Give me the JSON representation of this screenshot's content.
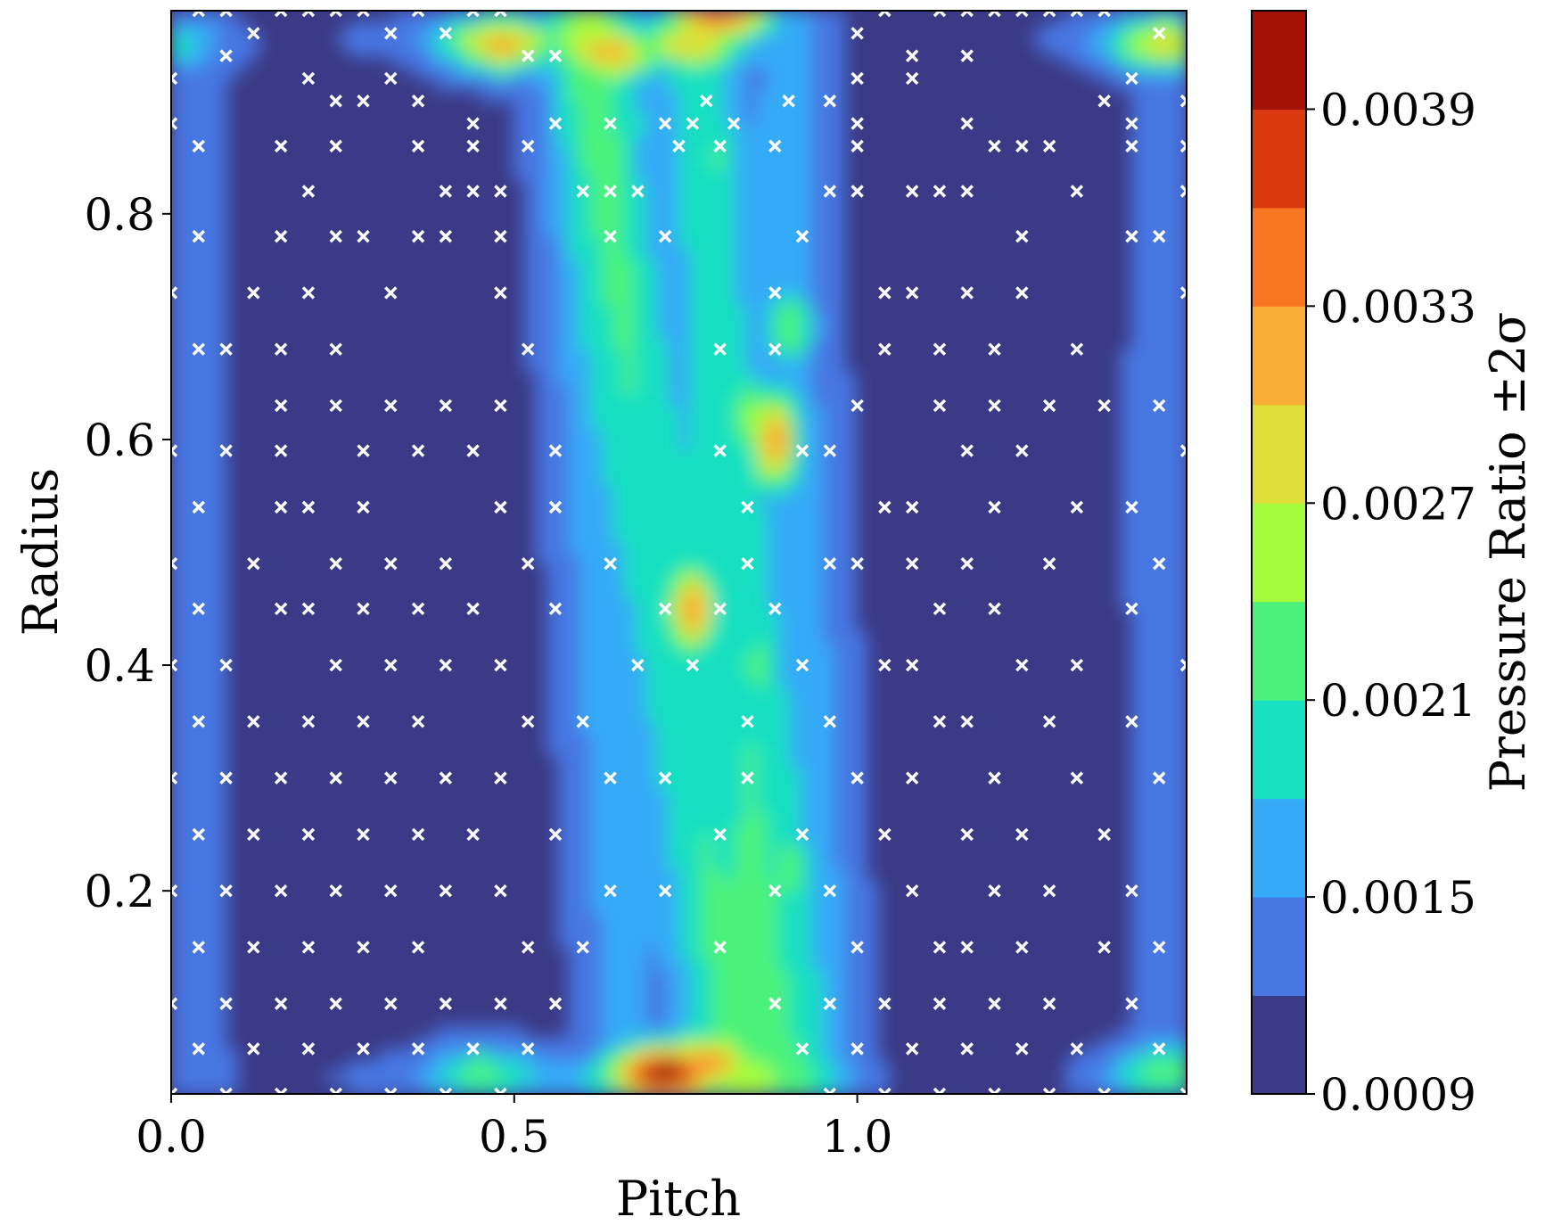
{
  "chart_data": {
    "type": "heatmap",
    "subtype": "filled-contour",
    "xlabel": "Pitch",
    "ylabel": "Radius",
    "colorbar_label": "Pressure Ratio ±2σ",
    "xlim": [
      0.0,
      1.48
    ],
    "ylim": [
      0.02,
      0.98
    ],
    "xticks": [
      0.0,
      0.5,
      1.0
    ],
    "xtick_labels": [
      "0.0",
      "0.5",
      "1.0"
    ],
    "yticks": [
      0.2,
      0.4,
      0.6,
      0.8
    ],
    "ytick_labels": [
      "0.2",
      "0.4",
      "0.6",
      "0.8"
    ],
    "levels": [
      0.0009,
      0.0012,
      0.0015,
      0.0018,
      0.0021,
      0.0024,
      0.0027,
      0.003,
      0.0033,
      0.0036,
      0.0039,
      0.0042
    ],
    "colorbar_ticks": [
      0.0009,
      0.0015,
      0.0021,
      0.0027,
      0.0033,
      0.0039
    ],
    "colorbar_tick_labels": [
      "0.0009",
      "0.0015",
      "0.0021",
      "0.0027",
      "0.0033",
      "0.0039"
    ],
    "level_colors": [
      "#3b3a86",
      "#4677e3",
      "#36aaf7",
      "#19e0c1",
      "#4bf27a",
      "#a3fc3c",
      "#dfdd37",
      "#fbae37",
      "#f97621",
      "#d9390c",
      "#a21101"
    ],
    "sample_marker": "x",
    "sample_marker_color": "#ffffff",
    "grid": false,
    "legend": "none",
    "field_description_only_for_rendering": "",
    "peaks": [
      {
        "x": 0.76,
        "y": 0.95,
        "value": 0.0028
      },
      {
        "x": 0.64,
        "y": 0.94,
        "value": 0.0029
      },
      {
        "x": 0.48,
        "y": 0.95,
        "value": 0.0028
      },
      {
        "x": 1.45,
        "y": 0.95,
        "value": 0.0026
      },
      {
        "x": 0.0,
        "y": 0.95,
        "value": 0.002
      },
      {
        "x": 0.8,
        "y": 0.98,
        "value": 0.0036
      },
      {
        "x": 0.88,
        "y": 0.6,
        "value": 0.0033
      },
      {
        "x": 0.84,
        "y": 0.62,
        "value": 0.0025
      },
      {
        "x": 0.76,
        "y": 0.45,
        "value": 0.0033
      },
      {
        "x": 0.72,
        "y": 0.04,
        "value": 0.0038
      },
      {
        "x": 0.78,
        "y": 0.05,
        "value": 0.0032
      },
      {
        "x": 1.45,
        "y": 0.04,
        "value": 0.0021
      },
      {
        "x": 0.45,
        "y": 0.04,
        "value": 0.0019
      },
      {
        "x": 0.9,
        "y": 0.22,
        "value": 0.0023
      },
      {
        "x": 0.86,
        "y": 0.4,
        "value": 0.0023
      },
      {
        "x": 0.9,
        "y": 0.7,
        "value": 0.0023
      },
      {
        "x": 0.8,
        "y": 0.85,
        "value": 0.0022
      },
      {
        "x": 0.66,
        "y": 0.88,
        "value": 0.0021
      }
    ],
    "ridges": [
      {
        "x1": 0.62,
        "y1": 0.96,
        "x2": 0.8,
        "y2": 0.05,
        "value": 0.002
      },
      {
        "x1": 0.76,
        "y1": 0.96,
        "x2": 0.88,
        "y2": 0.05,
        "value": 0.002
      },
      {
        "x1": 0.58,
        "y1": 0.9,
        "x2": 0.66,
        "y2": 0.05,
        "value": 0.0016
      },
      {
        "x1": 0.9,
        "y1": 0.8,
        "x2": 0.95,
        "y2": 0.1,
        "value": 0.0016
      }
    ],
    "sample_points": [
      [
        0.04,
        0.98
      ],
      [
        0.08,
        0.98
      ],
      [
        0.16,
        0.98
      ],
      [
        0.2,
        0.98
      ],
      [
        0.24,
        0.98
      ],
      [
        0.28,
        0.98
      ],
      [
        0.36,
        0.98
      ],
      [
        0.44,
        0.98
      ],
      [
        0.48,
        0.98
      ],
      [
        1.04,
        0.98
      ],
      [
        1.12,
        0.98
      ],
      [
        1.16,
        0.98
      ],
      [
        1.2,
        0.98
      ],
      [
        1.24,
        0.98
      ],
      [
        1.28,
        0.98
      ],
      [
        1.32,
        0.98
      ],
      [
        1.36,
        0.98
      ],
      [
        0.12,
        0.96
      ],
      [
        0.32,
        0.96
      ],
      [
        0.4,
        0.96
      ],
      [
        1.0,
        0.96
      ],
      [
        1.44,
        0.96
      ],
      [
        0.08,
        0.94
      ],
      [
        0.52,
        0.94
      ],
      [
        0.56,
        0.94
      ],
      [
        1.08,
        0.94
      ],
      [
        1.16,
        0.94
      ],
      [
        0.0,
        0.92
      ],
      [
        0.2,
        0.92
      ],
      [
        0.32,
        0.92
      ],
      [
        1.0,
        0.92
      ],
      [
        1.08,
        0.92
      ],
      [
        1.4,
        0.92
      ],
      [
        0.24,
        0.9
      ],
      [
        0.28,
        0.9
      ],
      [
        0.36,
        0.9
      ],
      [
        0.78,
        0.9
      ],
      [
        0.9,
        0.9
      ],
      [
        0.96,
        0.9
      ],
      [
        1.36,
        0.9
      ],
      [
        1.48,
        0.9
      ],
      [
        0.0,
        0.88
      ],
      [
        0.44,
        0.88
      ],
      [
        0.56,
        0.88
      ],
      [
        0.64,
        0.88
      ],
      [
        0.72,
        0.88
      ],
      [
        0.76,
        0.88
      ],
      [
        0.82,
        0.88
      ],
      [
        1.0,
        0.88
      ],
      [
        1.16,
        0.88
      ],
      [
        1.4,
        0.88
      ],
      [
        0.04,
        0.86
      ],
      [
        0.16,
        0.86
      ],
      [
        0.24,
        0.86
      ],
      [
        0.36,
        0.86
      ],
      [
        0.44,
        0.86
      ],
      [
        0.52,
        0.86
      ],
      [
        0.74,
        0.86
      ],
      [
        0.8,
        0.86
      ],
      [
        0.88,
        0.86
      ],
      [
        1.0,
        0.86
      ],
      [
        1.2,
        0.86
      ],
      [
        1.24,
        0.86
      ],
      [
        1.28,
        0.86
      ],
      [
        1.4,
        0.86
      ],
      [
        1.48,
        0.86
      ],
      [
        0.2,
        0.82
      ],
      [
        0.4,
        0.82
      ],
      [
        0.44,
        0.82
      ],
      [
        0.48,
        0.82
      ],
      [
        0.6,
        0.82
      ],
      [
        0.64,
        0.82
      ],
      [
        0.68,
        0.82
      ],
      [
        0.96,
        0.82
      ],
      [
        1.0,
        0.82
      ],
      [
        1.08,
        0.82
      ],
      [
        1.12,
        0.82
      ],
      [
        1.16,
        0.82
      ],
      [
        1.32,
        0.82
      ],
      [
        1.48,
        0.82
      ],
      [
        0.04,
        0.78
      ],
      [
        0.16,
        0.78
      ],
      [
        0.24,
        0.78
      ],
      [
        0.28,
        0.78
      ],
      [
        0.36,
        0.78
      ],
      [
        0.4,
        0.78
      ],
      [
        0.48,
        0.78
      ],
      [
        0.64,
        0.78
      ],
      [
        0.72,
        0.78
      ],
      [
        0.92,
        0.78
      ],
      [
        1.24,
        0.78
      ],
      [
        1.4,
        0.78
      ],
      [
        1.44,
        0.78
      ],
      [
        0.0,
        0.73
      ],
      [
        0.12,
        0.73
      ],
      [
        0.2,
        0.73
      ],
      [
        0.32,
        0.73
      ],
      [
        0.48,
        0.73
      ],
      [
        0.88,
        0.73
      ],
      [
        1.04,
        0.73
      ],
      [
        1.08,
        0.73
      ],
      [
        1.16,
        0.73
      ],
      [
        1.24,
        0.73
      ],
      [
        1.48,
        0.73
      ],
      [
        0.04,
        0.68
      ],
      [
        0.08,
        0.68
      ],
      [
        0.16,
        0.68
      ],
      [
        0.24,
        0.68
      ],
      [
        0.52,
        0.68
      ],
      [
        0.8,
        0.68
      ],
      [
        0.88,
        0.68
      ],
      [
        1.04,
        0.68
      ],
      [
        1.12,
        0.68
      ],
      [
        1.2,
        0.68
      ],
      [
        1.32,
        0.68
      ],
      [
        0.16,
        0.63
      ],
      [
        0.24,
        0.63
      ],
      [
        0.32,
        0.63
      ],
      [
        0.4,
        0.63
      ],
      [
        0.48,
        0.63
      ],
      [
        1.0,
        0.63
      ],
      [
        1.12,
        0.63
      ],
      [
        1.2,
        0.63
      ],
      [
        1.28,
        0.63
      ],
      [
        1.36,
        0.63
      ],
      [
        1.44,
        0.63
      ],
      [
        0.0,
        0.59
      ],
      [
        0.08,
        0.59
      ],
      [
        0.16,
        0.59
      ],
      [
        0.28,
        0.59
      ],
      [
        0.36,
        0.59
      ],
      [
        0.44,
        0.59
      ],
      [
        0.56,
        0.59
      ],
      [
        0.8,
        0.59
      ],
      [
        0.92,
        0.59
      ],
      [
        0.96,
        0.59
      ],
      [
        1.16,
        0.59
      ],
      [
        1.24,
        0.59
      ],
      [
        1.48,
        0.59
      ],
      [
        0.04,
        0.54
      ],
      [
        0.16,
        0.54
      ],
      [
        0.2,
        0.54
      ],
      [
        0.28,
        0.54
      ],
      [
        0.48,
        0.54
      ],
      [
        0.56,
        0.54
      ],
      [
        0.84,
        0.54
      ],
      [
        1.04,
        0.54
      ],
      [
        1.08,
        0.54
      ],
      [
        1.2,
        0.54
      ],
      [
        1.32,
        0.54
      ],
      [
        1.4,
        0.54
      ],
      [
        0.0,
        0.49
      ],
      [
        0.12,
        0.49
      ],
      [
        0.24,
        0.49
      ],
      [
        0.32,
        0.49
      ],
      [
        0.4,
        0.49
      ],
      [
        0.52,
        0.49
      ],
      [
        0.64,
        0.49
      ],
      [
        0.84,
        0.49
      ],
      [
        0.96,
        0.49
      ],
      [
        1.0,
        0.49
      ],
      [
        1.08,
        0.49
      ],
      [
        1.16,
        0.49
      ],
      [
        1.28,
        0.49
      ],
      [
        1.44,
        0.49
      ],
      [
        0.04,
        0.45
      ],
      [
        0.16,
        0.45
      ],
      [
        0.2,
        0.45
      ],
      [
        0.28,
        0.45
      ],
      [
        0.36,
        0.45
      ],
      [
        0.44,
        0.45
      ],
      [
        0.56,
        0.45
      ],
      [
        0.72,
        0.45
      ],
      [
        0.8,
        0.45
      ],
      [
        0.88,
        0.45
      ],
      [
        1.12,
        0.45
      ],
      [
        1.2,
        0.45
      ],
      [
        1.4,
        0.45
      ],
      [
        0.0,
        0.4
      ],
      [
        0.08,
        0.4
      ],
      [
        0.24,
        0.4
      ],
      [
        0.32,
        0.4
      ],
      [
        0.4,
        0.4
      ],
      [
        0.48,
        0.4
      ],
      [
        0.68,
        0.4
      ],
      [
        0.76,
        0.4
      ],
      [
        0.92,
        0.4
      ],
      [
        1.04,
        0.4
      ],
      [
        1.08,
        0.4
      ],
      [
        1.24,
        0.4
      ],
      [
        1.32,
        0.4
      ],
      [
        1.48,
        0.4
      ],
      [
        0.04,
        0.35
      ],
      [
        0.12,
        0.35
      ],
      [
        0.2,
        0.35
      ],
      [
        0.28,
        0.35
      ],
      [
        0.36,
        0.35
      ],
      [
        0.52,
        0.35
      ],
      [
        0.6,
        0.35
      ],
      [
        0.84,
        0.35
      ],
      [
        0.96,
        0.35
      ],
      [
        1.12,
        0.35
      ],
      [
        1.16,
        0.35
      ],
      [
        1.28,
        0.35
      ],
      [
        1.4,
        0.35
      ],
      [
        0.0,
        0.3
      ],
      [
        0.08,
        0.3
      ],
      [
        0.16,
        0.3
      ],
      [
        0.24,
        0.3
      ],
      [
        0.32,
        0.3
      ],
      [
        0.4,
        0.3
      ],
      [
        0.48,
        0.3
      ],
      [
        0.64,
        0.3
      ],
      [
        0.72,
        0.3
      ],
      [
        0.84,
        0.3
      ],
      [
        1.0,
        0.3
      ],
      [
        1.08,
        0.3
      ],
      [
        1.2,
        0.3
      ],
      [
        1.32,
        0.3
      ],
      [
        1.44,
        0.3
      ],
      [
        0.04,
        0.25
      ],
      [
        0.12,
        0.25
      ],
      [
        0.2,
        0.25
      ],
      [
        0.28,
        0.25
      ],
      [
        0.36,
        0.25
      ],
      [
        0.44,
        0.25
      ],
      [
        0.56,
        0.25
      ],
      [
        0.8,
        0.25
      ],
      [
        0.92,
        0.25
      ],
      [
        1.04,
        0.25
      ],
      [
        1.16,
        0.25
      ],
      [
        1.24,
        0.25
      ],
      [
        1.36,
        0.25
      ],
      [
        0.0,
        0.2
      ],
      [
        0.08,
        0.2
      ],
      [
        0.16,
        0.2
      ],
      [
        0.24,
        0.2
      ],
      [
        0.32,
        0.2
      ],
      [
        0.4,
        0.2
      ],
      [
        0.48,
        0.2
      ],
      [
        0.64,
        0.2
      ],
      [
        0.72,
        0.2
      ],
      [
        0.88,
        0.2
      ],
      [
        0.96,
        0.2
      ],
      [
        1.08,
        0.2
      ],
      [
        1.2,
        0.2
      ],
      [
        1.28,
        0.2
      ],
      [
        1.4,
        0.2
      ],
      [
        0.04,
        0.15
      ],
      [
        0.12,
        0.15
      ],
      [
        0.2,
        0.15
      ],
      [
        0.28,
        0.15
      ],
      [
        0.36,
        0.15
      ],
      [
        0.52,
        0.15
      ],
      [
        0.6,
        0.15
      ],
      [
        0.8,
        0.15
      ],
      [
        1.0,
        0.15
      ],
      [
        1.12,
        0.15
      ],
      [
        1.16,
        0.15
      ],
      [
        1.24,
        0.15
      ],
      [
        1.36,
        0.15
      ],
      [
        1.44,
        0.15
      ],
      [
        0.0,
        0.1
      ],
      [
        0.08,
        0.1
      ],
      [
        0.16,
        0.1
      ],
      [
        0.24,
        0.1
      ],
      [
        0.32,
        0.1
      ],
      [
        0.4,
        0.1
      ],
      [
        0.48,
        0.1
      ],
      [
        0.56,
        0.1
      ],
      [
        0.88,
        0.1
      ],
      [
        0.96,
        0.1
      ],
      [
        1.04,
        0.1
      ],
      [
        1.12,
        0.1
      ],
      [
        1.2,
        0.1
      ],
      [
        1.28,
        0.1
      ],
      [
        1.4,
        0.1
      ],
      [
        0.04,
        0.06
      ],
      [
        0.12,
        0.06
      ],
      [
        0.2,
        0.06
      ],
      [
        0.28,
        0.06
      ],
      [
        0.36,
        0.06
      ],
      [
        0.44,
        0.06
      ],
      [
        0.52,
        0.06
      ],
      [
        0.92,
        0.06
      ],
      [
        1.0,
        0.06
      ],
      [
        1.08,
        0.06
      ],
      [
        1.16,
        0.06
      ],
      [
        1.24,
        0.06
      ],
      [
        1.32,
        0.06
      ],
      [
        1.44,
        0.06
      ],
      [
        0.0,
        0.02
      ],
      [
        0.08,
        0.02
      ],
      [
        0.16,
        0.02
      ],
      [
        0.24,
        0.02
      ],
      [
        0.32,
        0.02
      ],
      [
        0.4,
        0.02
      ],
      [
        0.48,
        0.02
      ],
      [
        0.96,
        0.02
      ],
      [
        1.04,
        0.02
      ],
      [
        1.12,
        0.02
      ],
      [
        1.2,
        0.02
      ],
      [
        1.28,
        0.02
      ],
      [
        1.36,
        0.02
      ],
      [
        1.48,
        0.02
      ]
    ]
  }
}
